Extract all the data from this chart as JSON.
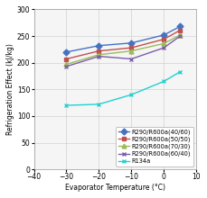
{
  "x": [
    -30,
    -20,
    -10,
    0,
    5
  ],
  "series": [
    {
      "label": "R290/R600a(40/60)",
      "color": "#4472C4",
      "marker": "D",
      "markersize": 3.5,
      "values": [
        220,
        232,
        237,
        252,
        268
      ]
    },
    {
      "label": "R290/R600a(50/50)",
      "color": "#C0504D",
      "marker": "s",
      "markersize": 3.5,
      "values": [
        207,
        222,
        228,
        244,
        261
      ]
    },
    {
      "label": "R290/R600a(70/30)",
      "color": "#9BBB59",
      "marker": "^",
      "markersize": 3.5,
      "values": [
        197,
        215,
        222,
        236,
        252
      ]
    },
    {
      "label": "R290/R600a(60/40)",
      "color": "#7B5EA7",
      "marker": "x",
      "markersize": 3.5,
      "values": [
        193,
        212,
        207,
        228,
        250
      ]
    },
    {
      "label": "R134a",
      "color": "#23D0D0",
      "marker": "x",
      "markersize": 3.5,
      "values": [
        120,
        122,
        140,
        165,
        183
      ]
    }
  ],
  "xlabel": "Evaporator Temperature (°C)",
  "ylabel": "Refrigeration Effect (kJ/kg)",
  "xlim": [
    -40,
    10
  ],
  "ylim": [
    0,
    300
  ],
  "xticks": [
    -40,
    -30,
    -20,
    -10,
    0,
    10
  ],
  "yticks": [
    0,
    50,
    100,
    150,
    200,
    250,
    300
  ],
  "grid": true,
  "grid_color": "#D0D0D0",
  "background_color": "#FFFFFF",
  "plot_bg_color": "#F5F5F5",
  "legend_fontsize": 4.8,
  "axis_fontsize": 5.5,
  "tick_fontsize": 5.5,
  "linewidth": 1.0,
  "title_fontsize": 6
}
